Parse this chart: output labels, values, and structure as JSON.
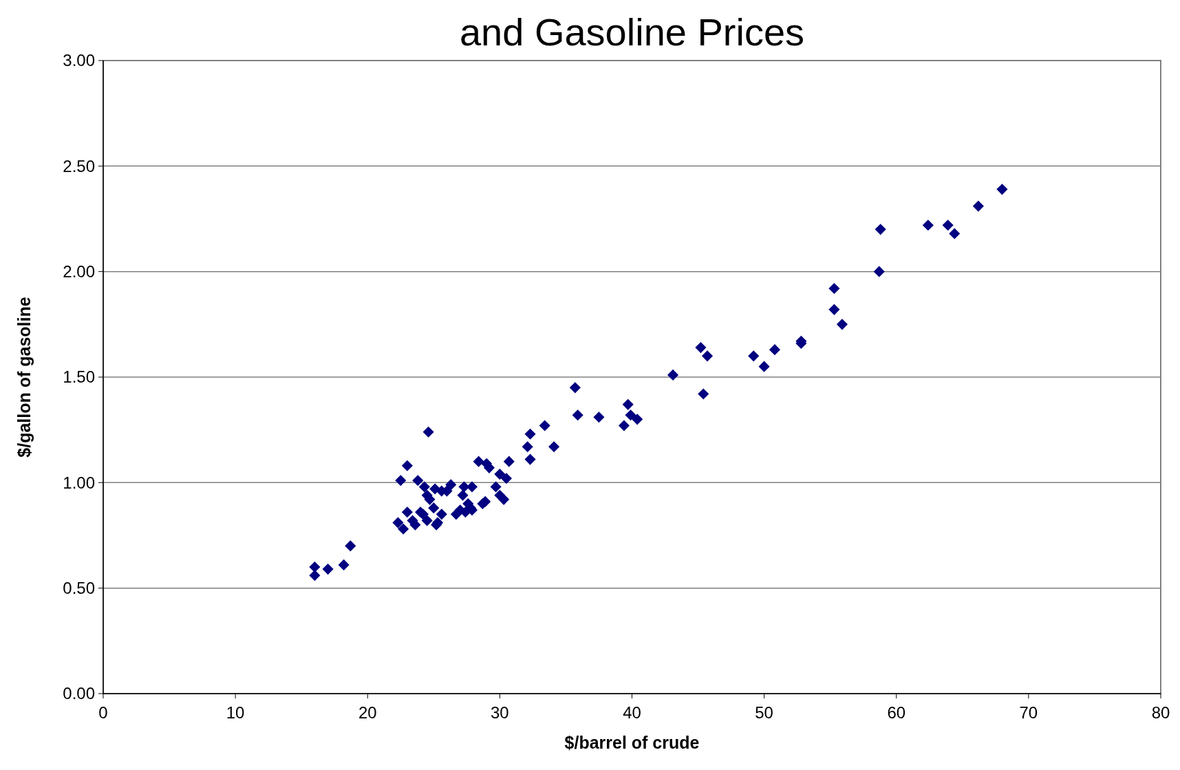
{
  "chart_data": {
    "type": "scatter",
    "title": "and Gasoline Prices",
    "xlabel": "$/barrel of crude",
    "ylabel": "$/gallon of gasoline",
    "xlim": [
      0,
      80
    ],
    "xticks": [
      0,
      10,
      20,
      30,
      40,
      50,
      60,
      70,
      80
    ],
    "ylim": [
      0,
      3
    ],
    "yticks": [
      {
        "value": 0,
        "label": "0.00"
      },
      {
        "value": 0.5,
        "label": "0.50"
      },
      {
        "value": 1,
        "label": "1.00"
      },
      {
        "value": 1.5,
        "label": "1.50"
      },
      {
        "value": 2,
        "label": "2.00"
      },
      {
        "value": 2.5,
        "label": "2.50"
      },
      {
        "value": 3,
        "label": "3.00"
      }
    ],
    "grid": "y",
    "marker": "diamond",
    "series": [
      {
        "color": "#000080",
        "x": [
          16.0,
          16.0,
          17.0,
          18.2,
          18.7,
          22.3,
          22.7,
          22.5,
          23.0,
          23.0,
          23.4,
          23.6,
          23.8,
          24.0,
          24.2,
          24.3,
          24.5,
          24.5,
          24.6,
          24.7,
          25.0,
          25.1,
          25.2,
          25.3,
          25.6,
          25.6,
          26.0,
          26.3,
          26.7,
          27.0,
          27.2,
          27.3,
          27.4,
          27.6,
          27.8,
          27.9,
          27.9,
          28.4,
          28.7,
          28.9,
          29.0,
          29.2,
          29.7,
          30.0,
          30.0,
          30.3,
          30.5,
          30.7,
          32.1,
          32.3,
          32.3,
          33.4,
          34.1,
          35.7,
          35.9,
          37.5,
          39.4,
          39.7,
          39.9,
          40.4,
          43.1,
          45.2,
          45.4,
          45.7,
          49.2,
          50.0,
          50.8,
          52.8,
          52.8,
          55.3,
          55.3,
          55.9,
          58.7,
          58.8,
          62.4,
          63.9,
          64.4,
          66.2,
          68.0
        ],
        "values": [
          0.56,
          0.6,
          0.59,
          0.61,
          0.7,
          0.81,
          0.78,
          1.01,
          1.08,
          0.86,
          0.82,
          0.8,
          1.01,
          0.86,
          0.85,
          0.98,
          0.94,
          0.82,
          1.24,
          0.92,
          0.88,
          0.97,
          0.8,
          0.81,
          0.96,
          0.85,
          0.96,
          0.99,
          0.85,
          0.87,
          0.94,
          0.98,
          0.86,
          0.9,
          0.88,
          0.87,
          0.98,
          1.1,
          0.9,
          0.91,
          1.09,
          1.07,
          0.98,
          1.04,
          0.94,
          0.92,
          1.02,
          1.1,
          1.17,
          1.23,
          1.11,
          1.27,
          1.17,
          1.45,
          1.32,
          1.31,
          1.27,
          1.37,
          1.32,
          1.3,
          1.51,
          1.64,
          1.42,
          1.6,
          1.6,
          1.55,
          1.63,
          1.67,
          1.66,
          1.92,
          1.82,
          1.75,
          2.0,
          2.2,
          2.22,
          2.22,
          2.18,
          2.31,
          2.39
        ]
      }
    ]
  }
}
